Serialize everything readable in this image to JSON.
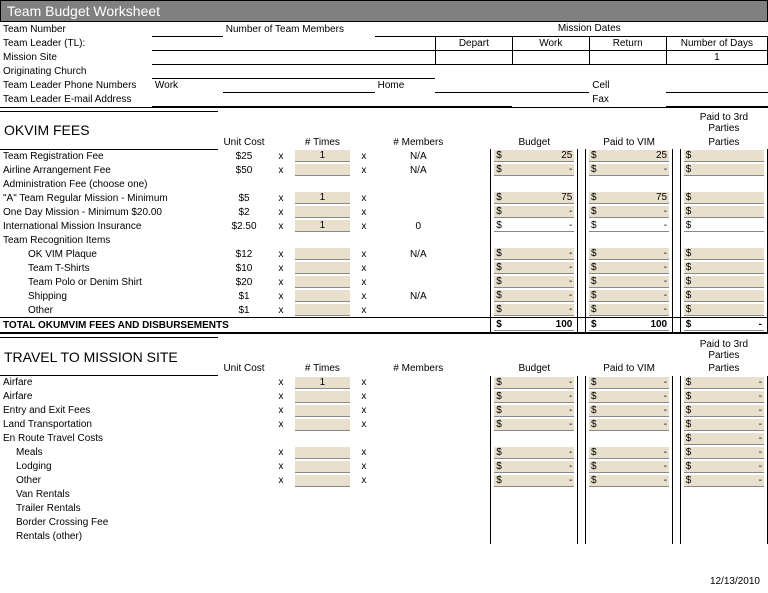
{
  "title": "Team Budget Worksheet",
  "info": {
    "team_number": "Team Number",
    "num_members": "Number of Team Members",
    "mission_dates": "Mission  Dates",
    "team_leader": "Team Leader (TL):",
    "depart": "Depart",
    "work": "Work",
    "return": "Return",
    "num_days": "Number of Days",
    "num_days_val": "1",
    "mission_site": "Mission Site",
    "orig_church": "Originating Church",
    "tl_phone": "Team Leader Phone Numbers",
    "work_lbl": "Work",
    "home_lbl": "Home",
    "cell_lbl": "Cell",
    "tl_email": "Team Leader E-mail Address",
    "fax_lbl": "Fax"
  },
  "cols": {
    "unit_cost": "Unit Cost",
    "times": "# Times",
    "members": "# Members",
    "budget": "Budget",
    "paid_vim": "Paid to VIM",
    "paid_3rd": "Paid to 3rd Parties"
  },
  "s1": {
    "header": "OKVIM FEES",
    "rows": [
      {
        "label": "Team Registration Fee",
        "unit": "$25",
        "times": "1",
        "members": "N/A",
        "budget": "25",
        "paid": "25",
        "paid3": "",
        "indent": 0,
        "show_times": true,
        "show_members": true,
        "show_money": true,
        "money_white": false
      },
      {
        "label": "Airline Arrangement Fee",
        "unit": "$50",
        "times": "",
        "members": "N/A",
        "budget": "-",
        "paid": "-",
        "paid3": "",
        "indent": 0,
        "show_times": true,
        "show_members": true,
        "show_money": true,
        "money_white": false
      },
      {
        "label": "Administration Fee (choose one)",
        "unit": "",
        "times": "",
        "members": "",
        "budget": "",
        "paid": "",
        "paid3": "",
        "indent": 0,
        "show_times": false,
        "show_members": false,
        "show_money": false,
        "money_white": false
      },
      {
        "label": "\"A\" Team Regular   Mission - Minimum",
        "unit": "$5",
        "times": "1",
        "members": "",
        "budget": "75",
        "paid": "75",
        "paid3": "",
        "indent": 0,
        "show_times": true,
        "show_members": true,
        "show_money": true,
        "money_white": false
      },
      {
        "label": " One Day Mission - Minimum $20.00",
        "unit": "$2",
        "times": "",
        "members": "",
        "budget": "-",
        "paid": "-",
        "paid3": "",
        "indent": 0,
        "show_times": true,
        "show_members": true,
        "show_money": true,
        "money_white": false
      },
      {
        "label": "International Mission Insurance",
        "unit": "$2.50",
        "times": "1",
        "members": "0",
        "budget": "-",
        "paid": "-",
        "paid3": "",
        "indent": 0,
        "show_times": true,
        "show_members": true,
        "show_money": true,
        "money_white": true
      },
      {
        "label": "Team Recognition Items",
        "unit": "",
        "times": "",
        "members": "",
        "budget": "",
        "paid": "",
        "paid3": "",
        "indent": 0,
        "show_times": false,
        "show_members": false,
        "show_money": false,
        "money_white": false
      },
      {
        "label": "OK VIM Plaque",
        "unit": "$12",
        "times": "",
        "members": "N/A",
        "budget": "-",
        "paid": "-",
        "paid3": "",
        "indent": 2,
        "show_times": true,
        "show_members": true,
        "show_money": true,
        "money_white": false
      },
      {
        "label": "Team T-Shirts",
        "unit": "$10",
        "times": "",
        "members": "",
        "budget": "-",
        "paid": "-",
        "paid3": "",
        "indent": 2,
        "show_times": true,
        "show_members": true,
        "show_money": true,
        "money_white": false
      },
      {
        "label": "Team Polo or Denim Shirt",
        "unit": "$20",
        "times": "",
        "members": "",
        "budget": "-",
        "paid": "-",
        "paid3": "",
        "indent": 2,
        "show_times": true,
        "show_members": true,
        "show_money": true,
        "money_white": false
      },
      {
        "label": "Shipping",
        "unit": "$1",
        "times": "",
        "members": "N/A",
        "budget": "-",
        "paid": "-",
        "paid3": "",
        "indent": 2,
        "show_times": true,
        "show_members": true,
        "show_money": true,
        "money_white": false
      },
      {
        "label": "Other",
        "unit": "$1",
        "times": "",
        "members": "",
        "budget": "-",
        "paid": "-",
        "paid3": "",
        "indent": 2,
        "show_times": true,
        "show_members": true,
        "show_money": true,
        "money_white": false
      }
    ],
    "total_label": "TOTAL OKUMVIM FEES AND DISBURSEMENTS",
    "total_budget": "100",
    "total_paid": "100",
    "total_paid3": "-"
  },
  "s2": {
    "header": "TRAVEL TO MISSION SITE",
    "rows": [
      {
        "label": "Airfare",
        "unit": "",
        "times": "1",
        "members": "",
        "budget": "-",
        "paid": "-",
        "paid3": "-",
        "indent": 0,
        "show_times": true,
        "show_members": true,
        "show_money": true
      },
      {
        "label": "Airfare",
        "unit": "",
        "times": "",
        "members": "",
        "budget": "-",
        "paid": "-",
        "paid3": "-",
        "indent": 0,
        "show_times": true,
        "show_members": true,
        "show_money": true
      },
      {
        "label": "Entry and Exit Fees",
        "unit": "",
        "times": "",
        "members": "",
        "budget": "-",
        "paid": "-",
        "paid3": "-",
        "indent": 0,
        "show_times": true,
        "show_members": true,
        "show_money": true
      },
      {
        "label": "Land Transportation",
        "unit": "",
        "times": "",
        "members": "",
        "budget": "-",
        "paid": "-",
        "paid3": "-",
        "indent": 0,
        "show_times": true,
        "show_members": true,
        "show_money": true
      },
      {
        "label": "En Route Travel Costs",
        "unit": "",
        "times": "",
        "members": "",
        "budget": "",
        "paid": "",
        "paid3": "-",
        "indent": 0,
        "show_times": false,
        "show_members": false,
        "show_money": true,
        "only3": true
      },
      {
        "label": "Meals",
        "unit": "",
        "times": "",
        "members": "",
        "budget": "-",
        "paid": "-",
        "paid3": "-",
        "indent": 1,
        "show_times": true,
        "show_members": true,
        "show_money": true
      },
      {
        "label": "Lodging",
        "unit": "",
        "times": "",
        "members": "",
        "budget": "-",
        "paid": "-",
        "paid3": "-",
        "indent": 1,
        "show_times": true,
        "show_members": true,
        "show_money": true
      },
      {
        "label": "Other",
        "unit": "",
        "times": "",
        "members": "",
        "budget": "-",
        "paid": "-",
        "paid3": "-",
        "indent": 1,
        "show_times": true,
        "show_members": true,
        "show_money": true
      },
      {
        "label": "Van Rentals",
        "unit": "",
        "times": "",
        "members": "",
        "budget": "",
        "paid": "",
        "paid3": "",
        "indent": 1,
        "show_times": false,
        "show_members": false,
        "show_money": false
      },
      {
        "label": "Trailer Rentals",
        "unit": "",
        "times": "",
        "members": "",
        "budget": "",
        "paid": "",
        "paid3": "",
        "indent": 1,
        "show_times": false,
        "show_members": false,
        "show_money": false
      },
      {
        "label": "Border Crossing Fee",
        "unit": "",
        "times": "",
        "members": "",
        "budget": "",
        "paid": "",
        "paid3": "",
        "indent": 1,
        "show_times": false,
        "show_members": false,
        "show_money": false
      },
      {
        "label": "Rentals (other)",
        "unit": "",
        "times": "",
        "members": "",
        "budget": "",
        "paid": "",
        "paid3": "",
        "indent": 1,
        "show_times": false,
        "show_members": false,
        "show_money": false
      }
    ]
  },
  "footer_date": "12/13/2010"
}
